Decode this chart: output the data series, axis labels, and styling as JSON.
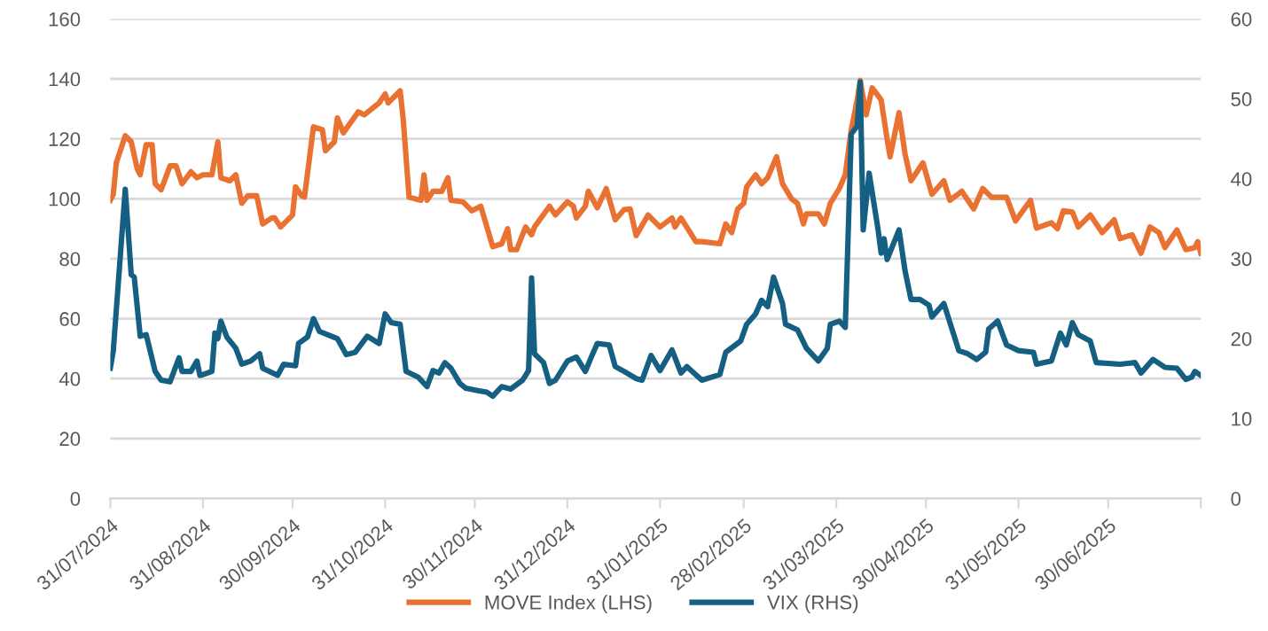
{
  "chart_data": {
    "type": "line",
    "xlim": [
      "2024-07-31",
      "2025-07-31"
    ],
    "xticks": [
      {
        "value": "2024-07-31",
        "label": "31/07/2024"
      },
      {
        "value": "2024-08-31",
        "label": "31/08/2024"
      },
      {
        "value": "2024-09-30",
        "label": "30/09/2024"
      },
      {
        "value": "2024-10-31",
        "label": "31/10/2024"
      },
      {
        "value": "2024-11-30",
        "label": "30/11/2024"
      },
      {
        "value": "2024-12-31",
        "label": "31/12/2024"
      },
      {
        "value": "2025-01-31",
        "label": "31/01/2025"
      },
      {
        "value": "2025-02-28",
        "label": "28/02/2025"
      },
      {
        "value": "2025-03-31",
        "label": "31/03/2025"
      },
      {
        "value": "2025-04-30",
        "label": "30/04/2025"
      },
      {
        "value": "2025-05-31",
        "label": "31/05/2025"
      },
      {
        "value": "2025-06-30",
        "label": "30/06/2025"
      },
      {
        "value": "2025-07-31",
        "label": null
      }
    ],
    "ylim": [
      0,
      160
    ],
    "yticks": [
      0,
      20,
      40,
      60,
      80,
      100,
      120,
      140,
      160
    ],
    "y2lim": [
      0,
      60
    ],
    "y2ticks": [
      0,
      10,
      20,
      30,
      40,
      50,
      60
    ],
    "grid": "y",
    "legend": "bottom",
    "marker": "none",
    "line_style": "solid",
    "series": [
      {
        "name": "MOVE Index (LHS)",
        "color": "#e97132",
        "x": [
          "2024-07-31",
          "2024-08-01",
          "2024-08-02",
          "2024-08-05",
          "2024-08-07",
          "2024-08-09",
          "2024-08-10",
          "2024-08-12",
          "2024-08-14",
          "2024-08-15",
          "2024-08-17",
          "2024-08-20",
          "2024-08-22",
          "2024-08-24",
          "2024-08-27",
          "2024-08-29",
          "2024-08-31",
          "2024-09-03",
          "2024-09-05",
          "2024-09-06",
          "2024-09-09",
          "2024-09-11",
          "2024-09-13",
          "2024-09-15",
          "2024-09-18",
          "2024-09-20",
          "2024-09-23",
          "2024-09-24",
          "2024-09-26",
          "2024-09-28",
          "2024-09-30",
          "2024-10-01",
          "2024-10-03",
          "2024-10-04",
          "2024-10-07",
          "2024-10-10",
          "2024-10-11",
          "2024-10-14",
          "2024-10-15",
          "2024-10-17",
          "2024-10-22",
          "2024-10-24",
          "2024-10-29",
          "2024-10-31",
          "2024-11-01",
          "2024-11-05",
          "2024-11-06",
          "2024-11-08",
          "2024-11-12",
          "2024-11-13",
          "2024-11-14",
          "2024-11-16",
          "2024-11-19",
          "2024-11-21",
          "2024-11-22",
          "2024-11-26",
          "2024-11-29",
          "2024-12-02",
          "2024-12-06",
          "2024-12-09",
          "2024-12-11",
          "2024-12-12",
          "2024-12-14",
          "2024-12-17",
          "2024-12-19",
          "2024-12-20",
          "2024-12-25",
          "2024-12-27",
          "2024-12-31",
          "2025-01-02",
          "2025-01-03",
          "2025-01-06",
          "2025-01-07",
          "2025-01-10",
          "2025-01-13",
          "2025-01-16",
          "2025-01-19",
          "2025-01-21",
          "2025-01-23",
          "2025-01-27",
          "2025-01-31",
          "2025-02-04",
          "2025-02-05",
          "2025-02-07",
          "2025-02-12",
          "2025-02-14",
          "2025-02-20",
          "2025-02-22",
          "2025-02-24",
          "2025-02-26",
          "2025-02-28",
          "2025-03-01",
          "2025-03-04",
          "2025-03-06",
          "2025-03-08",
          "2025-03-11",
          "2025-03-13",
          "2025-03-16",
          "2025-03-18",
          "2025-03-20",
          "2025-03-21",
          "2025-03-25",
          "2025-03-27",
          "2025-03-29",
          "2025-04-01",
          "2025-04-03",
          "2025-04-05",
          "2025-04-07",
          "2025-04-08",
          "2025-04-10",
          "2025-04-12",
          "2025-04-15",
          "2025-04-17",
          "2025-04-18",
          "2025-04-21",
          "2025-04-23",
          "2025-04-25",
          "2025-04-29",
          "2025-05-02",
          "2025-05-06",
          "2025-05-08",
          "2025-05-12",
          "2025-05-16",
          "2025-05-19",
          "2025-05-22",
          "2025-05-27",
          "2025-05-30",
          "2025-06-04",
          "2025-06-06",
          "2025-06-11",
          "2025-06-13",
          "2025-06-15",
          "2025-06-18",
          "2025-06-20",
          "2025-06-24",
          "2025-06-28",
          "2025-07-02",
          "2025-07-04",
          "2025-07-08",
          "2025-07-11",
          "2025-07-14",
          "2025-07-17",
          "2025-07-19",
          "2025-07-23",
          "2025-07-26",
          "2025-07-29",
          "2025-07-30",
          "2025-07-31"
        ],
        "values": [
          99.5,
          101.5,
          112,
          121,
          119,
          110,
          108,
          118,
          118,
          105,
          103,
          111,
          111,
          105,
          109,
          107,
          108,
          108,
          119,
          107,
          106,
          108,
          98.5,
          101,
          101,
          91.6,
          93.6,
          93.6,
          90.6,
          92.6,
          94.6,
          104,
          101,
          100.6,
          124,
          123,
          116,
          119,
          127,
          122,
          129,
          128,
          132,
          135,
          132,
          136,
          127,
          100.5,
          99.5,
          108,
          99.5,
          102.5,
          102.5,
          107,
          99.5,
          99,
          96,
          97.5,
          84,
          85,
          90,
          83,
          83,
          90.6,
          88,
          90.6,
          97.5,
          94.6,
          99,
          97.5,
          93.6,
          97.5,
          102.5,
          97,
          103.4,
          93,
          96.4,
          96.6,
          87.7,
          94.6,
          90.6,
          93.6,
          90.6,
          93.6,
          85.7,
          85.7,
          85,
          91.6,
          88.7,
          96.6,
          98.5,
          104,
          108,
          105,
          107,
          114,
          105,
          100,
          98.5,
          91.6,
          95,
          95,
          91.6,
          98.5,
          103.4,
          108,
          123,
          133,
          139.5,
          128,
          137,
          133,
          120,
          114,
          128.7,
          115,
          106,
          112,
          101.5,
          106,
          99.5,
          102.5,
          96.6,
          103.4,
          100.5,
          100.5,
          92.6,
          99.5,
          90.2,
          92,
          90,
          96,
          95.6,
          90.6,
          94.6,
          88.7,
          93,
          86.7,
          88,
          81.8,
          90.6,
          88.7,
          83.7,
          89.6,
          83,
          83.7,
          85.7,
          81.8
        ]
      },
      {
        "name": "VIX (RHS)",
        "color": "#156082",
        "axis": "y2",
        "x": [
          "2024-07-31",
          "2024-08-01",
          "2024-08-05",
          "2024-08-07",
          "2024-08-08",
          "2024-08-10",
          "2024-08-12",
          "2024-08-15",
          "2024-08-17",
          "2024-08-20",
          "2024-08-22",
          "2024-08-23",
          "2024-08-24",
          "2024-08-27",
          "2024-08-29",
          "2024-08-30",
          "2024-08-31",
          "2024-09-03",
          "2024-09-04",
          "2024-09-05",
          "2024-09-06",
          "2024-09-08",
          "2024-09-11",
          "2024-09-13",
          "2024-09-16",
          "2024-09-19",
          "2024-09-20",
          "2024-09-25",
          "2024-09-27",
          "2024-10-01",
          "2024-10-02",
          "2024-10-05",
          "2024-10-07",
          "2024-10-09",
          "2024-10-13",
          "2024-10-15",
          "2024-10-18",
          "2024-10-21",
          "2024-10-25",
          "2024-10-29",
          "2024-10-31",
          "2024-11-02",
          "2024-11-05",
          "2024-11-07",
          "2024-11-11",
          "2024-11-14",
          "2024-11-16",
          "2024-11-18",
          "2024-11-20",
          "2024-11-22",
          "2024-11-25",
          "2024-11-27",
          "2024-12-01",
          "2024-12-04",
          "2024-12-06",
          "2024-12-09",
          "2024-12-12",
          "2024-12-16",
          "2024-12-18",
          "2024-12-19",
          "2024-12-20",
          "2024-12-23",
          "2024-12-25",
          "2024-12-27",
          "2024-12-31",
          "2025-01-03",
          "2025-01-06",
          "2025-01-08",
          "2025-01-10",
          "2025-01-14",
          "2025-01-16",
          "2025-01-19",
          "2025-01-23",
          "2025-01-25",
          "2025-01-28",
          "2025-01-31",
          "2025-02-04",
          "2025-02-07",
          "2025-02-09",
          "2025-02-14",
          "2025-02-20",
          "2025-02-22",
          "2025-02-27",
          "2025-03-01",
          "2025-03-04",
          "2025-03-06",
          "2025-03-08",
          "2025-03-10",
          "2025-03-13",
          "2025-03-14",
          "2025-03-18",
          "2025-03-21",
          "2025-03-25",
          "2025-03-28",
          "2025-03-29",
          "2025-04-01",
          "2025-04-03",
          "2025-04-05",
          "2025-04-07",
          "2025-04-08",
          "2025-04-09",
          "2025-04-11",
          "2025-04-14",
          "2025-04-15",
          "2025-04-16",
          "2025-04-17",
          "2025-04-21",
          "2025-04-23",
          "2025-04-25",
          "2025-04-28",
          "2025-05-01",
          "2025-05-02",
          "2025-05-06",
          "2025-05-11",
          "2025-05-14",
          "2025-05-17",
          "2025-05-20",
          "2025-05-21",
          "2025-05-24",
          "2025-05-27",
          "2025-05-31",
          "2025-06-05",
          "2025-06-06",
          "2025-06-11",
          "2025-06-14",
          "2025-06-16",
          "2025-06-18",
          "2025-06-20",
          "2025-06-24",
          "2025-06-26",
          "2025-07-04",
          "2025-07-09",
          "2025-07-11",
          "2025-07-15",
          "2025-07-19",
          "2025-07-23",
          "2025-07-26",
          "2025-07-28",
          "2025-07-29",
          "2025-07-31"
        ],
        "values": [
          16.3,
          18.5,
          38.7,
          28,
          27.7,
          20.3,
          20.5,
          15.9,
          14.8,
          14.6,
          16.6,
          17.6,
          15.9,
          15.9,
          17.2,
          15.4,
          15.5,
          15.9,
          20.7,
          20,
          22.2,
          20.2,
          18.8,
          16.8,
          17.2,
          18.1,
          16.3,
          15.4,
          16.8,
          16.6,
          19.4,
          20.2,
          22.5,
          20.9,
          20.3,
          20,
          18,
          18.3,
          20.3,
          19.4,
          23.1,
          22,
          21.8,
          15.9,
          15.2,
          14,
          16,
          15.7,
          17,
          16.3,
          14.4,
          13.8,
          13.5,
          13.3,
          12.8,
          14,
          13.7,
          14.8,
          16,
          27.6,
          18.1,
          17,
          14.4,
          14.8,
          17.2,
          17.7,
          15.9,
          17.7,
          19.4,
          19.2,
          16.5,
          15.9,
          15,
          14.8,
          17.9,
          16,
          18.6,
          15.7,
          16.5,
          14.8,
          15.5,
          18.3,
          19.7,
          21.8,
          23.1,
          24.8,
          24,
          27.7,
          24.4,
          21.8,
          21.1,
          18.8,
          17.2,
          18.8,
          21.8,
          22.2,
          21.4,
          45.6,
          46.6,
          52.1,
          33.6,
          40.7,
          33.6,
          30.7,
          32.5,
          29.9,
          33.6,
          28.5,
          24.9,
          24.9,
          24.2,
          22.7,
          24.4,
          18.5,
          18.1,
          17.4,
          18.3,
          21.2,
          22.2,
          19.2,
          18.5,
          18.3,
          16.8,
          17.2,
          20.7,
          19.2,
          22,
          20.5,
          19.7,
          17,
          16.8,
          17,
          15.7,
          17.4,
          16.4,
          16.3,
          14.9,
          15.2,
          15.9,
          15.4
        ]
      }
    ]
  }
}
